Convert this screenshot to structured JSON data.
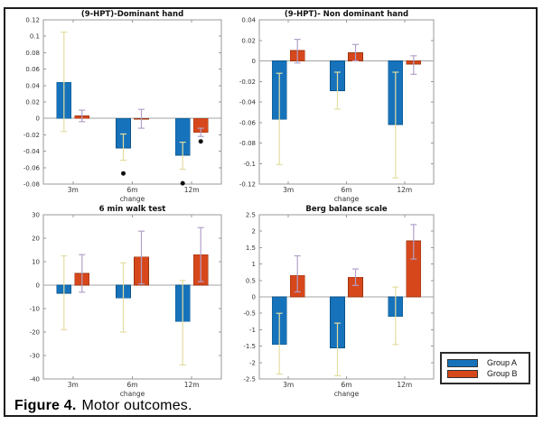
{
  "figure": {
    "caption_label": "Figure 4.",
    "caption_text": "Motor outcomes."
  },
  "legend": {
    "items": [
      {
        "label": "Group A",
        "color": "#1673bb"
      },
      {
        "label": "Group B",
        "color": "#d6481b"
      }
    ]
  },
  "colors": {
    "group_a_fill": "#1673bb",
    "group_a_edge": "#0d5489",
    "group_b_fill": "#d6481b",
    "group_b_edge": "#9c3410",
    "err_a": "#e4dda2",
    "err_b": "#b2a0c9",
    "axis": "#999999",
    "zero_line": "#a3a3a3",
    "dot": "#111111"
  },
  "chart_data": [
    {
      "type": "bar",
      "title": "(9-HPT)-Dominant hand",
      "xlabel": "change",
      "categories": [
        "3m",
        "6m",
        "12m"
      ],
      "ylim": [
        -0.08,
        0.12
      ],
      "yticks": [
        0.12,
        0.1,
        0.08,
        0.06,
        0.04,
        0.02,
        0,
        -0.02,
        -0.04,
        -0.06,
        -0.08
      ],
      "series": [
        {
          "name": "Group A",
          "values": [
            0.044,
            -0.036,
            -0.045
          ],
          "errors": [
            [
              -0.016,
              0.105
            ],
            [
              -0.051,
              -0.019
            ],
            [
              -0.062,
              -0.029
            ]
          ]
        },
        {
          "name": "Group B",
          "values": [
            0.003,
            -0.001,
            -0.017
          ],
          "errors": [
            [
              -0.004,
              0.01
            ],
            [
              -0.012,
              0.011
            ],
            [
              -0.022,
              -0.012
            ]
          ]
        }
      ],
      "dots": [
        {
          "category": "6m",
          "series": "Group A",
          "y": -0.067
        },
        {
          "category": "12m",
          "series": "Group A",
          "y": -0.079
        },
        {
          "category": "12m",
          "series": "Group B",
          "y": -0.028
        }
      ]
    },
    {
      "type": "bar",
      "title": "(9-HPT)- Non dominant hand",
      "xlabel": "change",
      "categories": [
        "3m",
        "6m",
        "12m"
      ],
      "ylim": [
        -0.12,
        0.04
      ],
      "yticks": [
        0.04,
        0.02,
        0,
        -0.02,
        -0.04,
        -0.06,
        -0.08,
        -0.1,
        -0.12
      ],
      "series": [
        {
          "name": "Group A",
          "values": [
            -0.057,
            -0.029,
            -0.062
          ],
          "errors": [
            [
              -0.101,
              -0.012
            ],
            [
              -0.047,
              -0.011
            ],
            [
              -0.114,
              -0.011
            ]
          ]
        },
        {
          "name": "Group B",
          "values": [
            0.01,
            0.008,
            -0.003
          ],
          "errors": [
            [
              -0.002,
              0.021
            ],
            [
              0.0,
              0.016
            ],
            [
              -0.013,
              0.005
            ]
          ]
        }
      ],
      "dots": []
    },
    {
      "type": "bar",
      "title": "6 min walk test",
      "xlabel": "change",
      "categories": [
        "3m",
        "6m",
        "12m"
      ],
      "ylim": [
        -40,
        30
      ],
      "yticks": [
        30,
        20,
        10,
        0,
        -10,
        -20,
        -30,
        -40
      ],
      "series": [
        {
          "name": "Group A",
          "values": [
            -3.5,
            -5.5,
            -15.5
          ],
          "errors": [
            [
              -19,
              12.5
            ],
            [
              -20,
              9.5
            ],
            [
              -34,
              2
            ]
          ]
        },
        {
          "name": "Group B",
          "values": [
            5,
            12,
            13
          ],
          "errors": [
            [
              -3,
              13
            ],
            [
              0.5,
              23
            ],
            [
              1.5,
              24.5
            ]
          ]
        }
      ],
      "dots": []
    },
    {
      "type": "bar",
      "title": "Berg balance scale",
      "xlabel": "change",
      "categories": [
        "3m",
        "6m",
        "12m"
      ],
      "ylim": [
        -2.5,
        2.5
      ],
      "yticks": [
        2.5,
        2,
        1.5,
        1,
        0.5,
        0,
        -0.5,
        -1,
        -1.5,
        -2,
        -2.5
      ],
      "series": [
        {
          "name": "Group A",
          "values": [
            -1.45,
            -1.55,
            -0.6
          ],
          "errors": [
            [
              -2.35,
              -0.5
            ],
            [
              -2.4,
              -0.8
            ],
            [
              -1.45,
              0.3
            ]
          ]
        },
        {
          "name": "Group B",
          "values": [
            0.65,
            0.6,
            1.7
          ],
          "errors": [
            [
              0.15,
              1.25
            ],
            [
              0.35,
              0.85
            ],
            [
              1.15,
              2.2
            ]
          ]
        }
      ],
      "dots": []
    }
  ]
}
